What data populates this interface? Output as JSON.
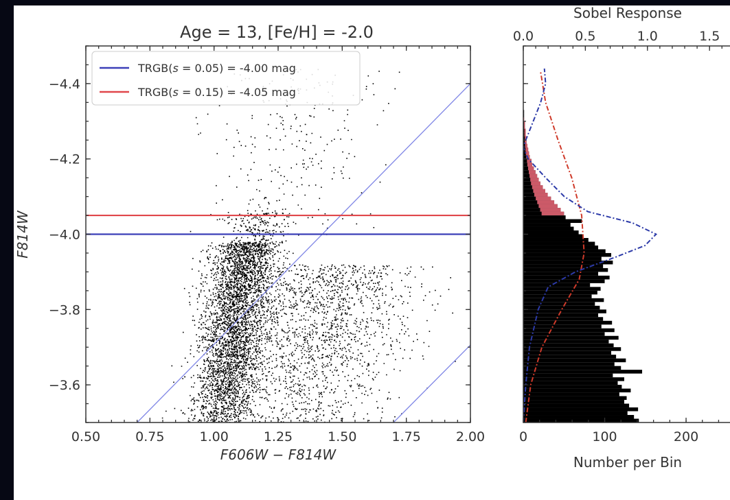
{
  "colors": {
    "background": "#060814",
    "panel": "#ffffff",
    "trgb_blue": "#3b3fb8",
    "trgb_red": "#e0464a",
    "isochrone_blue": "#7f86e6",
    "points": "#000000",
    "histogram": "#000000",
    "histogram_overlay": "#f06a7a",
    "sobel_blue": "#2c3aa8",
    "gaussian_red": "#cf3a2a"
  },
  "chart_data": [
    {
      "type": "scatter",
      "title": "Age = 13, [Fe/H] = -2.0",
      "xlabel": "F606W − F814W",
      "ylabel": "F814W",
      "xlim": [
        0.5,
        2.0
      ],
      "ylim": [
        -3.5,
        -4.5
      ],
      "y_inverted": true,
      "xticks": [
        "0.50",
        "0.75",
        "1.00",
        "1.25",
        "1.50",
        "1.75",
        "2.00"
      ],
      "xtick_values": [
        0.5,
        0.75,
        1.0,
        1.25,
        1.5,
        1.75,
        2.0
      ],
      "yticks": [
        "−3.6",
        "−3.8",
        "−4.0",
        "−4.2",
        "−4.4"
      ],
      "ytick_values": [
        -3.6,
        -3.8,
        -4.0,
        -4.2,
        -4.4
      ],
      "legend_position": "top-left",
      "hlines": [
        {
          "name": "TRGB(s = 0.05) = -4.00 mag",
          "y": -4.0,
          "color": "#3b3fb8"
        },
        {
          "name": "TRGB(s = 0.15) = -4.05 mag",
          "y": -4.05,
          "color": "#e0464a"
        }
      ],
      "legend": {
        "blue_prefix": "TRGB(",
        "blue_sym": "s",
        "blue_suffix": " = 0.05) = -4.00 mag",
        "red_prefix": "TRGB(",
        "red_sym": "s",
        "red_suffix": " = 0.15) = -4.05 mag"
      },
      "selection_edges": [
        {
          "x": [
            0.7,
            2.0
          ],
          "y": [
            -3.5,
            -4.4
          ]
        },
        {
          "x": [
            1.7,
            2.4
          ],
          "y": [
            -3.5,
            -3.98
          ]
        }
      ],
      "point_clouds": [
        {
          "desc": "RGB core",
          "n": 3600,
          "x_mean": 1.02,
          "x_sd": 0.065,
          "y_min": -3.5,
          "y_max": -3.98,
          "tilt": 0.22
        },
        {
          "desc": "secondary branch",
          "n": 1700,
          "x_mean": 1.32,
          "x_sd": 0.17,
          "y_min": -3.5,
          "y_max": -3.92,
          "tilt": 0.35
        },
        {
          "desc": "tip clump",
          "n": 260,
          "x_mean": 1.16,
          "x_sd": 0.06,
          "y_min": -3.95,
          "y_max": -4.06,
          "tilt": 0.0
        },
        {
          "desc": "AGB scatter",
          "n": 260,
          "x_mean": 1.32,
          "x_sd": 0.16,
          "y_min": -4.0,
          "y_max": -4.45,
          "tilt": 0.0
        }
      ]
    },
    {
      "type": "bar",
      "orientation": "horizontal",
      "xlabel": "Number per Bin",
      "top_xlabel": "Sobel Response",
      "xlim": [
        0,
        270
      ],
      "xticks": [
        "0",
        "100",
        "200"
      ],
      "xtick_values": [
        0,
        100,
        200
      ],
      "top_xlim": [
        0,
        1.77
      ],
      "top_xticks": [
        "0.0",
        "0.5",
        "1.0",
        "1.5"
      ],
      "top_xtick_values": [
        0.0,
        0.5,
        1.0,
        1.5
      ],
      "ylim": [
        -3.5,
        -4.5
      ],
      "bin_width": 0.01,
      "bins_y_start": -3.5,
      "counts": [
        142,
        136,
        128,
        141,
        130,
        124,
        127,
        118,
        132,
        121,
        116,
        124,
        110,
        146,
        120,
        112,
        126,
        114,
        108,
        120,
        111,
        105,
        117,
        100,
        112,
        96,
        109,
        98,
        92,
        102,
        94,
        88,
        99,
        84,
        91,
        95,
        82,
        100,
        106,
        92,
        104,
        98,
        110,
        96,
        108,
        101,
        92,
        88,
        80,
        74,
        68,
        62,
        58,
        72,
        52,
        50,
        46,
        42,
        38,
        34,
        30,
        27,
        24,
        21,
        19,
        17,
        15,
        13,
        11,
        10,
        8,
        7,
        6,
        5,
        4,
        4,
        3,
        3,
        2,
        2,
        1,
        1,
        1,
        0,
        0,
        0,
        0,
        0,
        0,
        0,
        0,
        0,
        0,
        0,
        0,
        0,
        0,
        0,
        0,
        0
      ],
      "sobel": {
        "name": "Sobel response",
        "y": [
          -3.5,
          -3.6,
          -3.7,
          -3.8,
          -3.86,
          -3.9,
          -3.94,
          -3.97,
          -4.0,
          -4.03,
          -4.06,
          -4.1,
          -4.15,
          -4.2,
          -4.23,
          -4.25,
          -4.3,
          -4.35,
          -4.4,
          -4.44
        ],
        "value": [
          0.0,
          0.02,
          0.05,
          0.12,
          0.2,
          0.42,
          0.75,
          0.98,
          1.07,
          0.88,
          0.52,
          0.33,
          0.18,
          0.04,
          0.0,
          0.02,
          0.08,
          0.14,
          0.18,
          0.17
        ]
      },
      "gaussian": {
        "name": "Gaussian model",
        "y": [
          -3.5,
          -3.6,
          -3.7,
          -3.8,
          -3.88,
          -3.95,
          -4.05,
          -4.15,
          -4.25,
          -4.35,
          -4.43
        ],
        "value": [
          0.02,
          0.06,
          0.15,
          0.31,
          0.45,
          0.49,
          0.47,
          0.39,
          0.28,
          0.18,
          0.14
        ]
      }
    }
  ]
}
